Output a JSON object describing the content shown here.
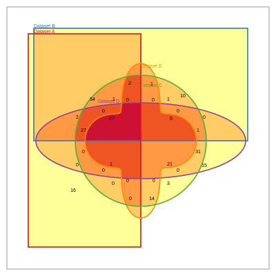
{
  "colors": {
    "background": "#ffffff",
    "frame": "#808080",
    "fills": [
      "#ffff99",
      "#ffcc66",
      "#ff9944",
      "#ee5522",
      "#cc1133"
    ],
    "set_a": "#dd1122",
    "set_b": "#3377bb",
    "set_c": "#55aa33",
    "set_d": "#884499",
    "set_e": "#ff8800"
  },
  "sets": {
    "a": {
      "label": "Dataset A"
    },
    "b": {
      "label": "Dataset B"
    },
    "c": {
      "label": "Dataset C"
    },
    "d": {
      "label": "Dataset D"
    },
    "e": {
      "label": "Dataset E"
    }
  },
  "counts": [
    {
      "id": "r1",
      "value": "54"
    },
    {
      "id": "r2",
      "value": "2"
    },
    {
      "id": "r3",
      "value": "1"
    },
    {
      "id": "r4",
      "value": "1"
    },
    {
      "id": "r5",
      "value": "0"
    },
    {
      "id": "r6",
      "value": "0"
    },
    {
      "id": "r7",
      "value": "1"
    },
    {
      "id": "r8",
      "value": "10"
    },
    {
      "id": "r9",
      "value": "0"
    },
    {
      "id": "r10",
      "value": "0"
    },
    {
      "id": "r11",
      "value": "2"
    },
    {
      "id": "r12",
      "value": "17"
    },
    {
      "id": "r13",
      "value": "5"
    },
    {
      "id": "r14",
      "value": "0"
    },
    {
      "id": "r15",
      "value": "27"
    },
    {
      "id": "r16",
      "value": "1"
    },
    {
      "id": "r17",
      "value": "0"
    },
    {
      "id": "r18",
      "value": "31"
    },
    {
      "id": "r19",
      "value": "0"
    },
    {
      "id": "r20",
      "value": "1"
    },
    {
      "id": "r21",
      "value": "21"
    },
    {
      "id": "r22",
      "value": "15"
    },
    {
      "id": "r23",
      "value": "0"
    },
    {
      "id": "r24",
      "value": "0"
    },
    {
      "id": "r25",
      "value": "16"
    },
    {
      "id": "r26",
      "value": "0"
    },
    {
      "id": "r27",
      "value": "0"
    },
    {
      "id": "r28",
      "value": "0"
    },
    {
      "id": "r29",
      "value": "3"
    },
    {
      "id": "r30",
      "value": "0"
    },
    {
      "id": "r31",
      "value": "14"
    }
  ]
}
